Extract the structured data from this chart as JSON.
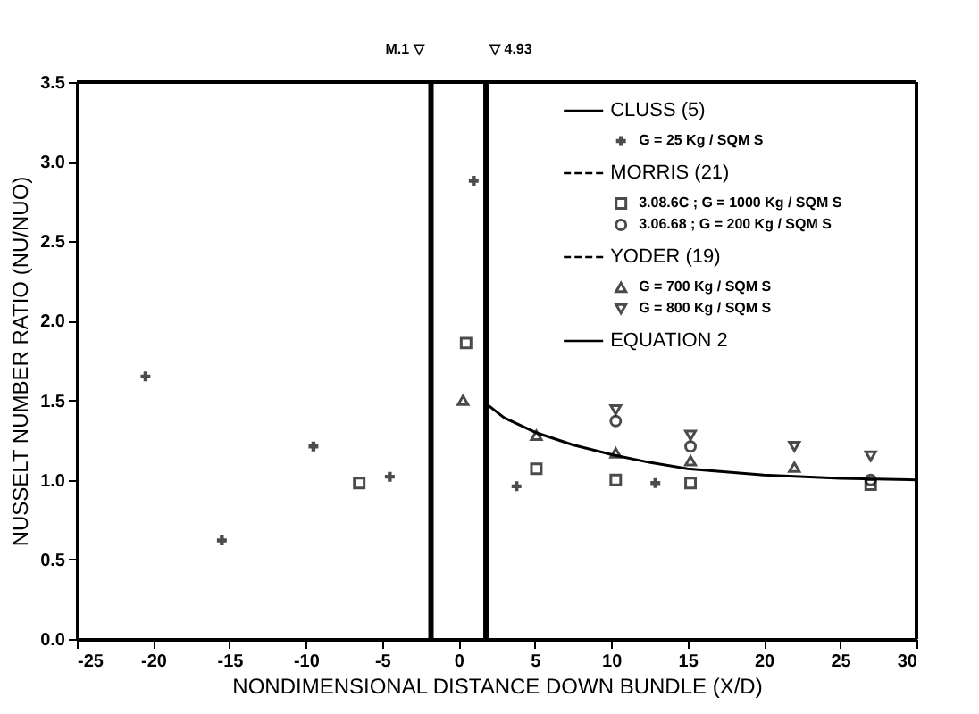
{
  "chart_data": {
    "type": "scatter",
    "xlabel": "NONDIMENSIONAL DISTANCE DOWN BUNDLE (X/D)",
    "ylabel": "NUSSELT NUMBER RATIO (NU/NUO)",
    "xlim": [
      -25,
      30
    ],
    "xticks": [
      -25,
      -20,
      -15,
      -10,
      -5,
      0,
      5,
      10,
      15,
      20,
      25,
      30
    ],
    "ylim": [
      0,
      3.5
    ],
    "yticks": [
      {
        "value": 0,
        "label": "0.0"
      },
      {
        "value": 0.5,
        "label": "0.5"
      },
      {
        "value": 1,
        "label": "1.0"
      },
      {
        "value": 1.5,
        "label": "1.5"
      },
      {
        "value": 2,
        "label": "2.0"
      },
      {
        "value": 2.5,
        "label": "2.5"
      },
      {
        "value": 3,
        "label": "3.0"
      },
      {
        "value": 3.5,
        "label": "3.5"
      }
    ],
    "grid": false,
    "legend": "top right",
    "series": [
      {
        "name": "G = 25 Kg / SQM S",
        "color": "#000000",
        "marker": "cross",
        "x": [
          -20.5,
          -15.5,
          -9.5,
          -4.5,
          1,
          3.8,
          12.9
        ],
        "values": [
          1.65,
          0.62,
          1.21,
          1.02,
          2.88,
          0.96,
          0.98
        ]
      },
      {
        "name": "3.08.6C ; G = 1000 Kg / SQM S",
        "color": "#000000",
        "marker": "square",
        "x": [
          -6.5,
          0.5,
          5.1,
          10.3,
          15.2,
          27
        ],
        "values": [
          0.98,
          1.86,
          1.07,
          1.0,
          0.98,
          0.97
        ]
      },
      {
        "name": "3.06.68 ; G = 200 Kg / SQM S",
        "color": "#000000",
        "marker": "circle",
        "x": [
          10.3,
          15.2,
          27
        ],
        "values": [
          1.37,
          1.21,
          1.0
        ]
      },
      {
        "name": "G = 700 Kg / SQM S",
        "color": "#000000",
        "marker": "triangle",
        "x": [
          0.3,
          5.1,
          10.3,
          15.2,
          22
        ],
        "values": [
          1.5,
          1.28,
          1.17,
          1.12,
          1.08
        ]
      },
      {
        "name": "G = 800 Kg / SQM S",
        "color": "#000000",
        "marker": "triangle-down",
        "x": [
          10.3,
          15.2,
          22,
          27
        ],
        "values": [
          1.44,
          1.28,
          1.21,
          1.15
        ]
      },
      {
        "name": "EQUATION 2",
        "type": "line",
        "color": "#000000",
        "line_style": "solid",
        "marker": "none",
        "x": [
          1.8,
          3,
          5,
          7.5,
          10,
          12.5,
          15,
          17.5,
          20,
          25,
          30
        ],
        "values": [
          1.48,
          1.39,
          1.3,
          1.22,
          1.16,
          1.11,
          1.07,
          1.05,
          1.03,
          1.01,
          1.0
        ]
      }
    ],
    "legend_title": "CLUSS (5)",
    "annotations": [
      "MORRIS (21)",
      "YODER (19)",
      "M.1 ▽",
      "▽ 4.93"
    ],
    "ref_lines": [
      {
        "axis": "x",
        "value": -1.8,
        "color": "#000000"
      },
      {
        "axis": "x",
        "value": 1.8,
        "color": "#000000"
      }
    ]
  }
}
